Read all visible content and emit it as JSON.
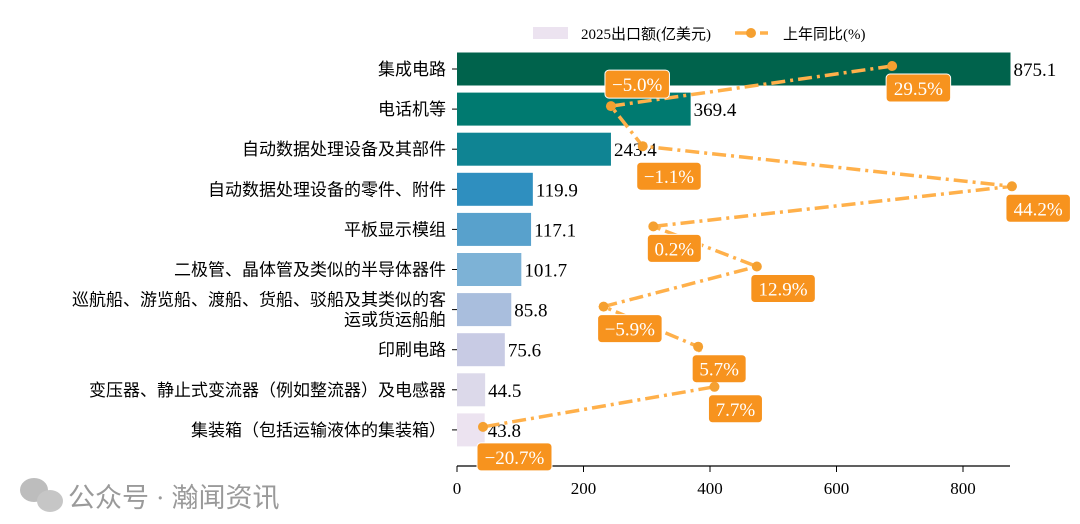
{
  "chart_data": {
    "type": "bar",
    "orientation": "horizontal",
    "categories": [
      "集成电路",
      "电话机等",
      "自动数据处理设备及其部件",
      "自动数据处理设备的零件、附件",
      "平板显示模组",
      "二极管、晶体管及类似的半导体器件",
      "巡航船、游览船、渡船、货船、驳船及其类似的客\n运或货运船舶",
      "印刷电路",
      "变压器、静止式变流器（例如整流器）及电感器",
      "集装箱（包括运输液体的集装箱）"
    ],
    "series": [
      {
        "name": "2025出口额(亿美元)",
        "type": "bar",
        "values": [
          875.1,
          369.4,
          243.4,
          119.9,
          117.1,
          101.7,
          85.8,
          75.6,
          44.5,
          43.8
        ],
        "colors": [
          "#00634c",
          "#007a70",
          "#0f8493",
          "#2f8fbf",
          "#58a1cc",
          "#7db2d6",
          "#a9bedd",
          "#c8cbe4",
          "#dcd9ea",
          "#ece3f0"
        ]
      },
      {
        "name": "上年同比(%)",
        "type": "line",
        "values": [
          29.5,
          -5.0,
          -1.1,
          44.2,
          0.2,
          12.9,
          -5.9,
          5.7,
          7.7,
          -20.7
        ],
        "color": "#ffb04a",
        "label_color": "#f7931e"
      }
    ],
    "labels": [
      "875.1",
      "369.4",
      "243.4",
      "119.9",
      "117.1",
      "101.7",
      "85.8",
      "75.6",
      "44.5",
      "43.8"
    ],
    "line_labels": [
      "29.5%",
      "−5.0%",
      "−1.1%",
      "44.2%",
      "0.2%",
      "12.9%",
      "−5.9%",
      "5.7%",
      "7.7%",
      "−20.7%"
    ],
    "xticks": [
      "0",
      "200",
      "400",
      "600",
      "800"
    ],
    "xlim": [
      0,
      850
    ],
    "legend": "top-center",
    "watermark": "公众号 · 瀚闻资讯"
  }
}
